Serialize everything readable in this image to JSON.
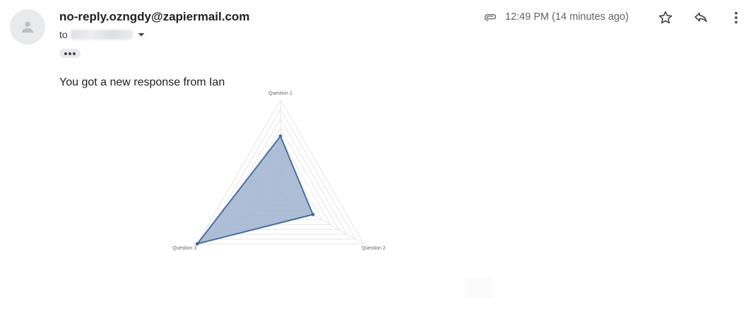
{
  "email": {
    "sender": "no-reply.ozngdy@zapiermail.com",
    "to_label": "to",
    "time": "12:49 PM (14 minutes ago)",
    "body": "You got a new response from Ian"
  },
  "icons": [
    "avatar-person-icon",
    "paperclip-icon",
    "star-icon",
    "reply-icon",
    "more-vert-icon",
    "chevron-down-icon",
    "ellipsis-icon"
  ],
  "chart_data": {
    "type": "radar",
    "axes": [
      "Question 1",
      "Question 2",
      "Question 3"
    ],
    "rmax": 10,
    "rings": 10,
    "series": [
      {
        "values": [
          6.2,
          3.9,
          10
        ]
      }
    ],
    "colors": {
      "fill": "#9fb3cf",
      "stroke": "#4a6fa0",
      "grid": "#e6e6e6"
    }
  }
}
